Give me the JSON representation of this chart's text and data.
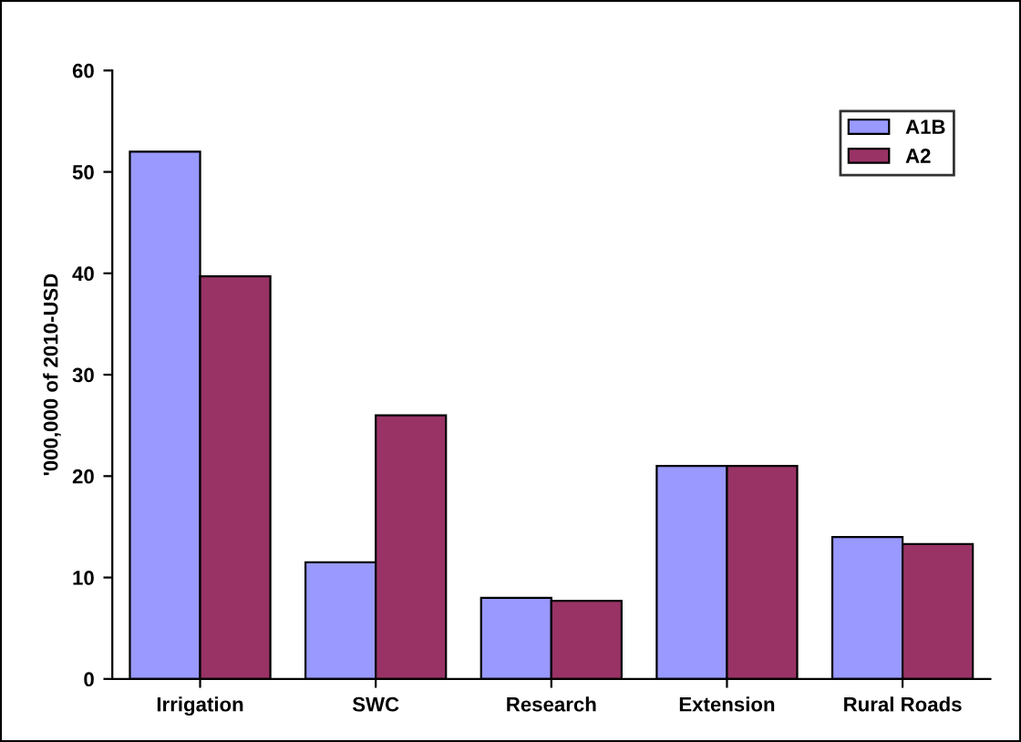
{
  "chart_data": {
    "type": "bar",
    "ylabel": "'000,000 of 2010-USD",
    "categories": [
      "Irrigation",
      "SWC",
      "Research",
      "Extension",
      "Rural Roads"
    ],
    "series": [
      {
        "name": "A1B",
        "color": "#9999ff",
        "values": [
          52,
          11.5,
          8,
          21,
          14
        ]
      },
      {
        "name": "A2",
        "color": "#993366",
        "values": [
          39.7,
          26,
          7.7,
          21,
          13.3
        ]
      }
    ],
    "ylim": [
      0,
      60
    ],
    "yticks": [
      0,
      10,
      20,
      30,
      40,
      50,
      60
    ],
    "grid": false,
    "legend": "top right"
  }
}
